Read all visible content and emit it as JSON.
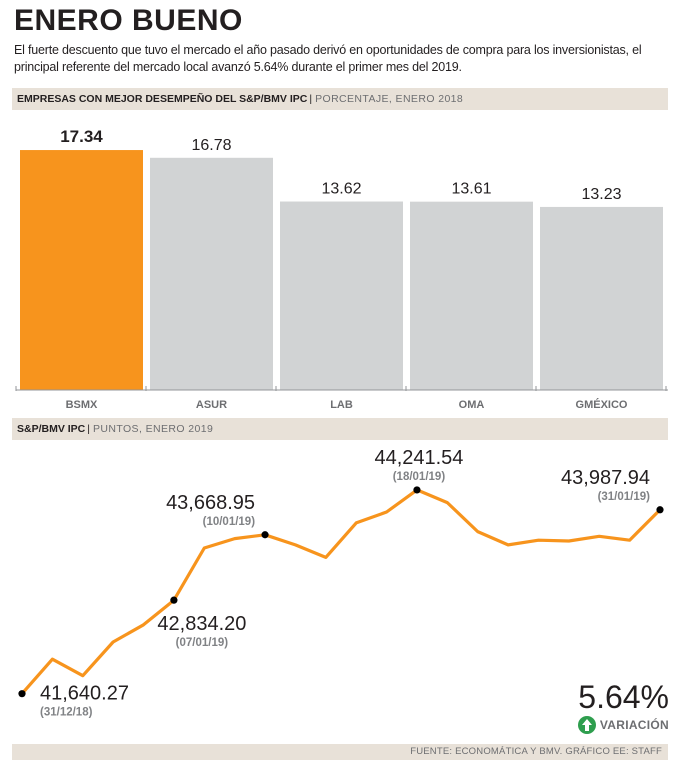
{
  "header": {
    "title": "ENERO BUENO",
    "subtitle": "El fuerte descuento que tuvo el mercado el año pasado derivó en oportunidades de compra para los inversionistas, el principal referente del mercado local avanzó 5.64% durante el primer mes del 2019."
  },
  "bar_section": {
    "label_strong": "EMPRESAS CON MEJOR DESEMPEÑO DEL S&P/BMV IPC",
    "label_light": "PORCENTAJE, ENERO 2018"
  },
  "line_section": {
    "label_strong": "S&P/BMV IPC",
    "label_light": "PUNTOS, ENERO 2019"
  },
  "variation": {
    "value": "5.64%",
    "label": "VARIACIÓN"
  },
  "source": "FUENTE: ECONOMÁTICA Y BMV. GRÁFICO EE: STAFF",
  "colors": {
    "highlight": "#f7941d",
    "bar_gray": "#d1d3d4",
    "line": "#f7941d",
    "text": "#231f20",
    "band": "#e8e1d8",
    "up_arrow": "#2e9e4e"
  },
  "chart_data": [
    {
      "type": "bar",
      "title": "EMPRESAS CON MEJOR DESEMPEÑO DEL S&P/BMV IPC",
      "ylabel": "PORCENTAJE, ENERO 2018",
      "categories": [
        "BSMX",
        "ASUR",
        "LAB",
        "OMA",
        "GMÉXICO"
      ],
      "values": [
        17.34,
        16.78,
        13.62,
        13.61,
        13.23
      ],
      "labels": [
        "17.34",
        "16.78",
        "13.62",
        "13.61",
        "13.23"
      ],
      "highlight_index": 0,
      "ylim": [
        0,
        18.5
      ]
    },
    {
      "type": "line",
      "title": "S&P/BMV IPC",
      "ylabel": "PUNTOS, ENERO 2019",
      "values": [
        41640.27,
        42080,
        41870,
        42300,
        42520,
        42834.2,
        43500,
        43620,
        43668.95,
        43540,
        43380,
        43820,
        43960,
        44241.54,
        44080,
        43710,
        43540,
        43600,
        43590,
        43650,
        43600,
        43987.94
      ],
      "ylim": [
        41100,
        44700
      ],
      "annotations": [
        {
          "index": 0,
          "value": "41,640.27",
          "date": "(31/12/18)",
          "pos": "below-right"
        },
        {
          "index": 5,
          "value": "42,834.20",
          "date": "(07/01/19)",
          "pos": "below"
        },
        {
          "index": 8,
          "value": "43,668.95",
          "date": "(10/01/19)",
          "pos": "above-left"
        },
        {
          "index": 13,
          "value": "44,241.54",
          "date": "(18/01/19)",
          "pos": "above"
        },
        {
          "index": 21,
          "value": "43,987.94",
          "date": "(31/01/19)",
          "pos": "above-left"
        }
      ]
    }
  ]
}
